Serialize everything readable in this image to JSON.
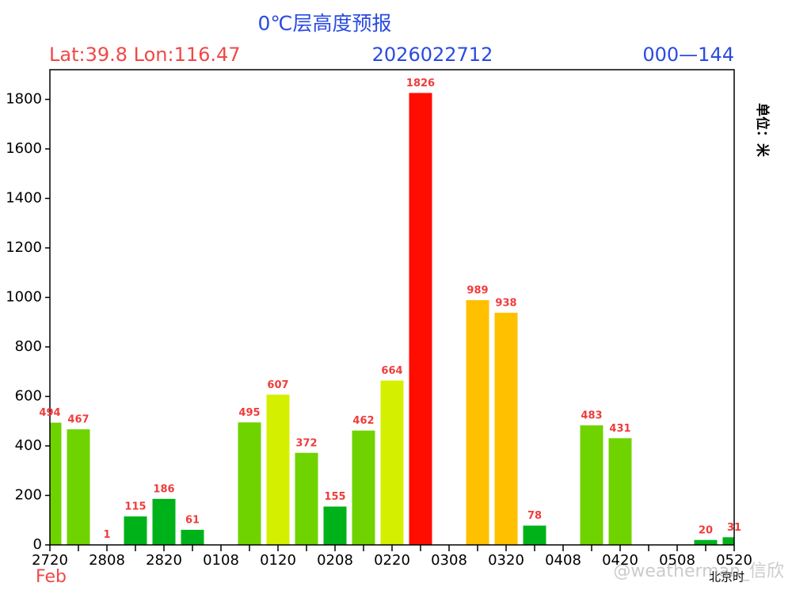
{
  "chart_data": {
    "type": "bar",
    "title": "0℃层高度预报",
    "location": "Lat:39.8 Lon:116.47",
    "init_time": "2026022712",
    "range": "000—144",
    "unit_label": "单位：米",
    "month_label": "Feb",
    "time_label": "北京时",
    "watermark": "@weatherman_信欣",
    "categories": [
      "2720",
      null,
      "2808",
      null,
      "2820",
      null,
      "0108",
      null,
      "0120",
      null,
      "0208",
      null,
      "0220",
      null,
      "0308",
      null,
      "0320",
      null,
      "0408",
      null,
      "0420",
      null,
      "0508",
      null,
      "0520"
    ],
    "values": [
      494,
      467,
      1,
      115,
      186,
      61,
      null,
      495,
      607,
      372,
      155,
      462,
      664,
      1826,
      null,
      989,
      938,
      78,
      null,
      483,
      431,
      null,
      null,
      20,
      31
    ],
    "colors": [
      "#6fd300",
      "#6fd300",
      "#00b21a",
      "#00b21a",
      "#00b21a",
      "#00b21a",
      null,
      "#6fd300",
      "#d4f000",
      "#6fd300",
      "#00b21a",
      "#6fd300",
      "#d4f000",
      "#ff0d00",
      null,
      "#ffc000",
      "#ffc000",
      "#00b21a",
      null,
      "#6fd300",
      "#6fd300",
      null,
      null,
      "#00b21a",
      "#00b21a"
    ],
    "ylim": [
      0,
      1920
    ],
    "yticks": [
      0,
      200,
      400,
      600,
      800,
      1000,
      1200,
      1400,
      1600,
      1800
    ]
  }
}
